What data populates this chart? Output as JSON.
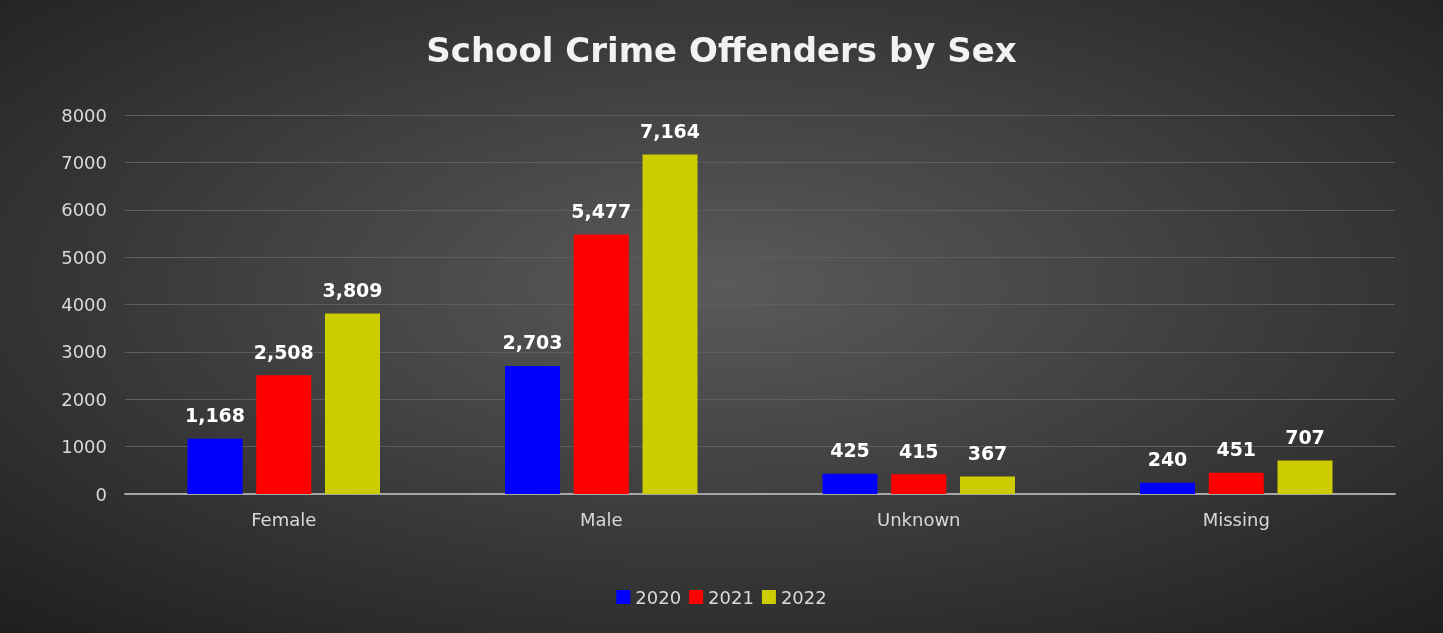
{
  "chart_data": {
    "type": "bar",
    "title": "School Crime Offenders by Sex",
    "categories": [
      "Female",
      "Male",
      "Unknown",
      "Missing"
    ],
    "series": [
      {
        "name": "2020",
        "color": "#0000ff",
        "values": [
          1168,
          2703,
          425,
          240
        ],
        "value_labels": [
          "1,168",
          "2,703",
          "425",
          "240"
        ]
      },
      {
        "name": "2021",
        "color": "#ff0000",
        "values": [
          2508,
          5477,
          415,
          451
        ],
        "value_labels": [
          "2,508",
          "5,477",
          "415",
          "451"
        ]
      },
      {
        "name": "2022",
        "color": "#cccc00",
        "values": [
          3809,
          7164,
          367,
          707
        ],
        "value_labels": [
          "3,809",
          "7,164",
          "367",
          "707"
        ]
      }
    ],
    "ylim": [
      0,
      8000
    ],
    "yticks": [
      0,
      1000,
      2000,
      3000,
      4000,
      5000,
      6000,
      7000,
      8000
    ],
    "grid": "y",
    "legend": "bottom"
  }
}
